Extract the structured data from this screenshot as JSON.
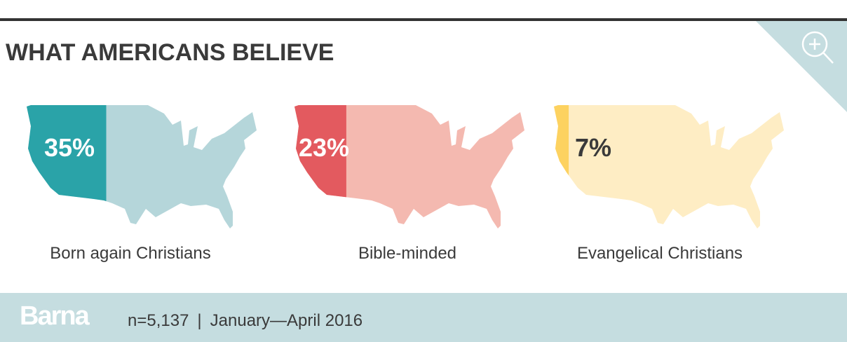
{
  "title": "WHAT AMERICANS BELIEVE",
  "zoom_icon": "magnify-plus-icon",
  "chart_data": {
    "type": "bar",
    "encoding": "share of US map filled",
    "categories": [
      "Born again Christians",
      "Bible-minded",
      "Evangelical Christians"
    ],
    "values": [
      35,
      23,
      7
    ],
    "value_labels": [
      "35%",
      "23%",
      "7%"
    ],
    "unit": "%",
    "colors": {
      "fill": [
        "#2aa3a8",
        "#e35a5f",
        "#fdd260"
      ],
      "base": [
        "#b5d6da",
        "#f4b9b0",
        "#feedc4"
      ],
      "label_text": [
        "#ffffff",
        "#ffffff",
        "#3a3a3a"
      ]
    }
  },
  "footer": {
    "brand": "Barna",
    "sample": "n=5,137",
    "separator": "|",
    "period": "January—April 2016",
    "background": "#c5dde0"
  }
}
